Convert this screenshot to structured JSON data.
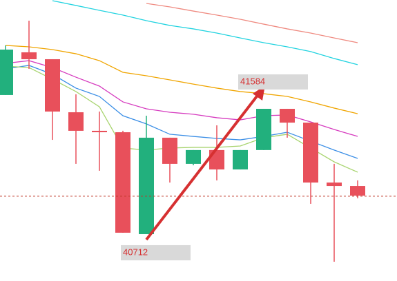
{
  "chart_data": {
    "type": "candlestick",
    "open": [
      41680,
      41977,
      41929,
      41560,
      41431,
      41421,
      40712,
      41383,
      41201,
      41297,
      41162,
      41297,
      41584,
      41488,
      41071,
      41047
    ],
    "high": [
      42025,
      42197,
      41929,
      41685,
      41565,
      41431,
      41536,
      41383,
      41297,
      41469,
      41297,
      41584,
      41584,
      41488,
      41201,
      41086
    ],
    "low": [
      41680,
      41862,
      41368,
      41201,
      41153,
      40722,
      40712,
      41071,
      41191,
      41086,
      41162,
      41297,
      41383,
      40923,
      40520,
      40961
    ],
    "close": [
      41996,
      41929,
      41565,
      41431,
      41421,
      40722,
      41383,
      41201,
      41297,
      41162,
      41297,
      41584,
      41488,
      41071,
      41047,
      40980
    ],
    "up_color": "#22b07d",
    "down_color": "#e8505b",
    "series": [
      {
        "color": "#ef8a80",
        "values": [
          null,
          null,
          null,
          null,
          null,
          null,
          42317,
          42293,
          42264,
          42236,
          42207,
          42173,
          42140,
          42111,
          42077,
          42044
        ]
      },
      {
        "color": "#22d3e0",
        "values": [
          null,
          null,
          42336,
          42303,
          42269,
          42236,
          42197,
          42164,
          42140,
          42111,
          42077,
          42044,
          42015,
          41982,
          41934,
          41891
        ]
      },
      {
        "color": "#f0a500",
        "values": [
          42025,
          42015,
          41996,
          41967,
          41919,
          41838,
          41814,
          41785,
          41756,
          41728,
          41704,
          41689,
          41670,
          41632,
          41589,
          41550
        ]
      },
      {
        "color": "#d63bbf",
        "values": [
          41900,
          41919,
          41871,
          41804,
          41742,
          41632,
          41584,
          41560,
          41546,
          41522,
          41507,
          41536,
          41541,
          41493,
          41440,
          41392
        ]
      },
      {
        "color": "#3a8ee6",
        "values": [
          41862,
          41886,
          41824,
          41728,
          41670,
          41536,
          41479,
          41407,
          41392,
          41378,
          41368,
          41392,
          41421,
          41359,
          41297,
          41239
        ]
      },
      {
        "color": "#a8d46f",
        "values": [
          41881,
          41871,
          41790,
          41704,
          41598,
          41311,
          41297,
          41311,
          41316,
          41316,
          41325,
          41383,
          41407,
          41311,
          41215,
          41143
        ]
      }
    ],
    "price_line": 40976,
    "price_line_color": "#c0392b",
    "price_labels": [
      41584,
      40712
    ],
    "label_color": "#d63031",
    "ylim": [
      40386,
      42341
    ]
  }
}
